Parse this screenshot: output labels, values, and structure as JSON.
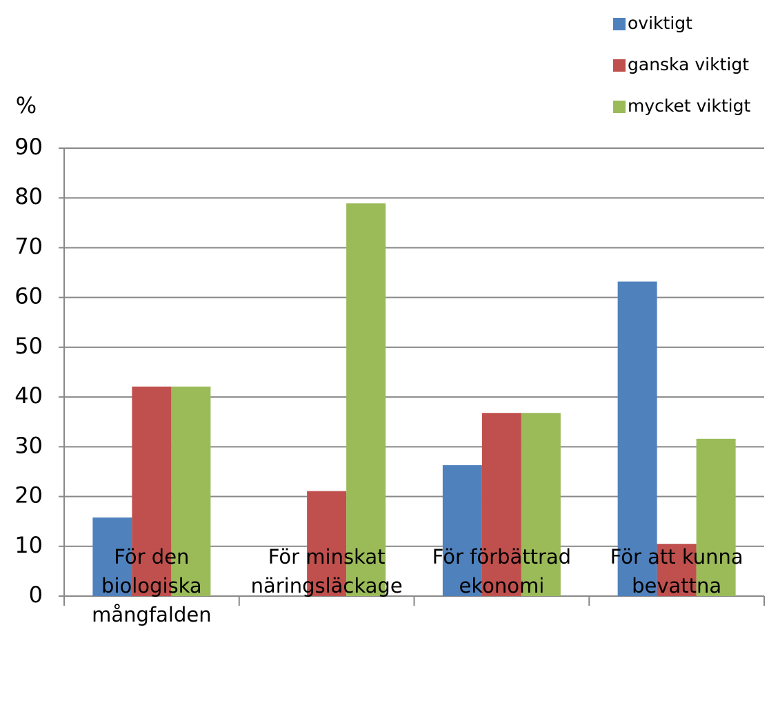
{
  "chart_data": {
    "type": "bar",
    "y_label": "%",
    "categories": [
      "För den biologiska mångfalden",
      "För minskat näringsläckage",
      "För förbättrad ekonomi",
      "För att kunna bevattna"
    ],
    "series": [
      {
        "name": "oviktigt",
        "color": "#4f81bd",
        "values": [
          15.8,
          0,
          26.3,
          63.2
        ]
      },
      {
        "name": "ganska viktigt",
        "color": "#c0504d",
        "values": [
          42.1,
          21.1,
          36.8,
          10.5
        ]
      },
      {
        "name": "mycket viktigt",
        "color": "#9bbb59",
        "values": [
          42.1,
          78.9,
          36.8,
          31.6
        ]
      }
    ],
    "ylim": [
      0,
      90
    ],
    "yticks": [
      0,
      10,
      20,
      30,
      40,
      50,
      60,
      70,
      80,
      90
    ],
    "grid": true,
    "legend": "top-right"
  }
}
